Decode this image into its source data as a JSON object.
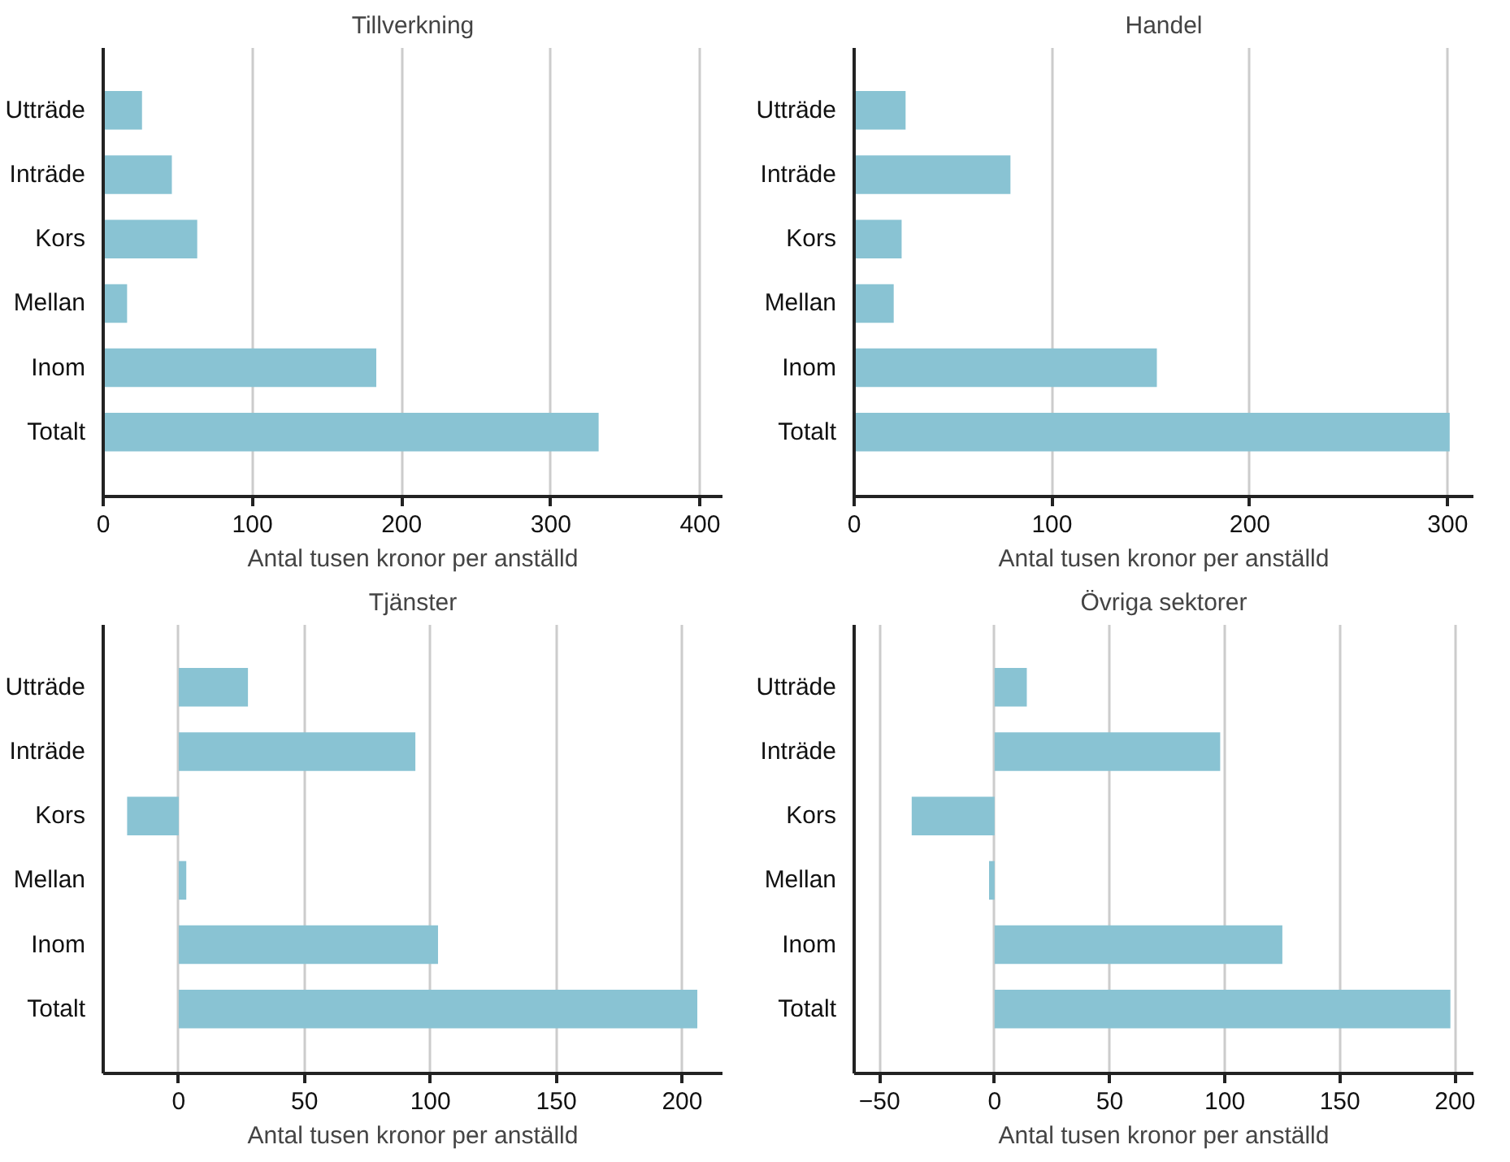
{
  "chart_data": [
    {
      "type": "bar",
      "orientation": "horizontal",
      "title": "Tillverkning",
      "xlabel": "Antal tusen kronor per anställd",
      "categories": [
        "Utträde",
        "Inträde",
        "Kors",
        "Mellan",
        "Inom",
        "Totalt"
      ],
      "values": [
        26,
        46,
        63,
        16,
        183,
        332
      ],
      "color": "#89c3d3",
      "xlim": [
        0,
        415
      ],
      "xticks": [
        0,
        100,
        200,
        300,
        400
      ],
      "grid": "x"
    },
    {
      "type": "bar",
      "orientation": "horizontal",
      "title": "Handel",
      "xlabel": "Antal tusen kronor per anställd",
      "categories": [
        "Utträde",
        "Inträde",
        "Kors",
        "Mellan",
        "Inom",
        "Totalt"
      ],
      "values": [
        26,
        79,
        24,
        20,
        153,
        301
      ],
      "color": "#89c3d3",
      "xlim": [
        0,
        313
      ],
      "xticks": [
        0,
        100,
        200,
        300
      ],
      "grid": "x"
    },
    {
      "type": "bar",
      "orientation": "horizontal",
      "title": "Tjänster",
      "xlabel": "Antal tusen kronor per anställd",
      "categories": [
        "Utträde",
        "Inträde",
        "Kors",
        "Mellan",
        "Inom",
        "Totalt"
      ],
      "values": [
        27.5,
        94,
        -20.5,
        3,
        103,
        206
      ],
      "color": "#89c3d3",
      "xlim": [
        -30,
        216
      ],
      "xticks": [
        0,
        50,
        100,
        150,
        200
      ],
      "grid": "x"
    },
    {
      "type": "bar",
      "orientation": "horizontal",
      "title": "Övriga sektorer",
      "xlabel": "Antal tusen kronor per anställd",
      "categories": [
        "Utträde",
        "Inträde",
        "Kors",
        "Mellan",
        "Inom",
        "Totalt"
      ],
      "values": [
        14,
        98,
        -36,
        -2.4,
        125,
        198
      ],
      "color": "#89c3d3",
      "xlim": [
        -61,
        208
      ],
      "xticks": [
        -50,
        0,
        50,
        100,
        150,
        200
      ],
      "grid": "x"
    }
  ]
}
